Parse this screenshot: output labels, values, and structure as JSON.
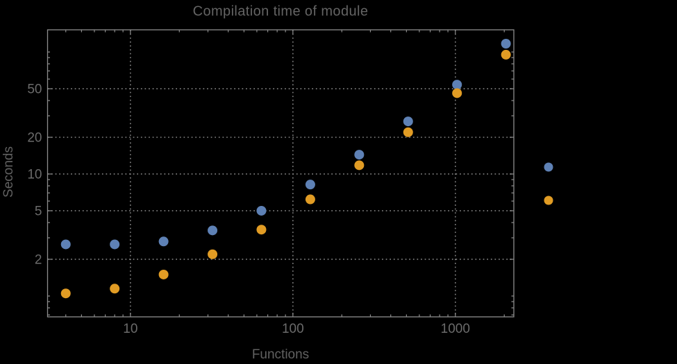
{
  "chart_data": {
    "type": "scatter",
    "title": "Compilation time of module",
    "xlabel": "Functions",
    "ylabel": "Seconds",
    "x_scale": "log",
    "y_scale": "log",
    "x": [
      4,
      8,
      16,
      32,
      64,
      128,
      256,
      512,
      1024,
      2048
    ],
    "series": [
      {
        "name": "series-1-blue",
        "color": "#5E81B5",
        "values": [
          2.65,
          2.65,
          2.8,
          3.45,
          5.0,
          8.2,
          14.4,
          27,
          54,
          117
        ]
      },
      {
        "name": "series-2-orange",
        "color": "#E19C24",
        "values": [
          1.05,
          1.15,
          1.5,
          2.2,
          3.5,
          6.2,
          11.8,
          22,
          46,
          95
        ]
      }
    ],
    "x_ticks": [
      10,
      100,
      1000
    ],
    "x_tick_labels": [
      "10",
      "100",
      "1000"
    ],
    "y_ticks": [
      2,
      5,
      10,
      20,
      50
    ],
    "y_tick_labels": [
      "2",
      "5",
      "10",
      "20",
      "50"
    ],
    "x_range": [
      3.09,
      2290
    ],
    "y_range": [
      0.675,
      152
    ],
    "grid": true,
    "grid_style": "dotted",
    "legend_position": "right-outside",
    "legend_markers": [
      {
        "name": "legend-marker-blue",
        "color": "#5E81B5"
      },
      {
        "name": "legend-marker-orange",
        "color": "#E19C24"
      }
    ],
    "colors": {
      "background": "#000000",
      "frame": "#8E8E8E",
      "grid": "#848484",
      "title_text": "#646464",
      "axis_label_text": "#616161",
      "tick_label_text": "#6B6B6B"
    }
  }
}
